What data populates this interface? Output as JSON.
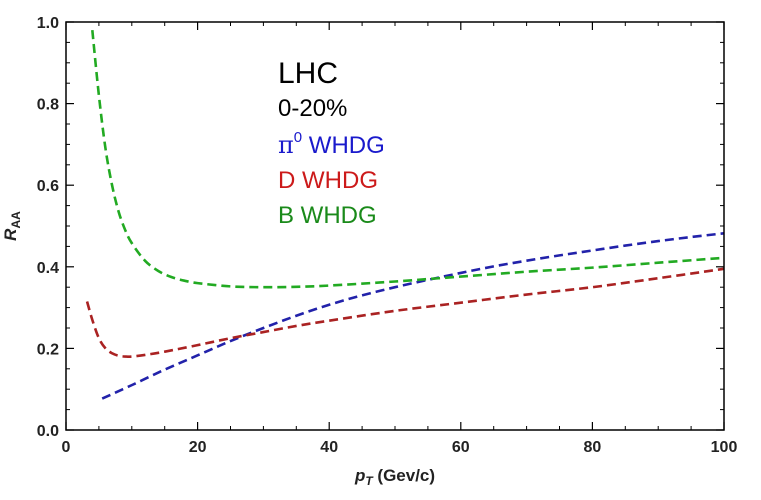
{
  "chart_data": {
    "type": "line",
    "title": "",
    "xlabel_main": "p",
    "xlabel_sub": "T",
    "xlabel_rest": " (Gev/c)",
    "ylabel_main": "R",
    "ylabel_sub": "AA",
    "xlim": [
      0,
      100
    ],
    "ylim": [
      0,
      1
    ],
    "x_ticks": [
      0,
      20,
      40,
      60,
      80,
      100
    ],
    "x_tick_labels": [
      "0",
      "20",
      "40",
      "60",
      "80",
      "100"
    ],
    "y_ticks": [
      0,
      0.2,
      0.4,
      0.6,
      0.8,
      1.0
    ],
    "y_tick_labels": [
      "0.0",
      "0.2",
      "0.4",
      "0.6",
      "0.8",
      "1.0"
    ],
    "grid": false,
    "annotations": {
      "collider": "LHC",
      "centrality": "0-20%",
      "labels": [
        {
          "symbol": "π",
          "sup": "0",
          "text": " WHDG",
          "color": "#1a1acc"
        },
        {
          "symbol": "",
          "sup": "",
          "text": "D WHDG",
          "color": "#cc1a1a"
        },
        {
          "symbol": "",
          "sup": "",
          "text": "B WHDG",
          "color": "#1a8a1a"
        }
      ]
    },
    "series": [
      {
        "color": "#2222aa",
        "x": [
          5.5,
          10,
          15,
          20,
          25,
          30,
          35,
          40,
          45,
          50,
          55,
          60,
          65,
          70,
          75,
          80,
          85,
          90,
          95,
          100
        ],
        "y": [
          0.077,
          0.11,
          0.148,
          0.183,
          0.218,
          0.25,
          0.28,
          0.307,
          0.33,
          0.35,
          0.368,
          0.385,
          0.401,
          0.415,
          0.428,
          0.44,
          0.452,
          0.463,
          0.473,
          0.482
        ]
      },
      {
        "color": "#aa2222",
        "x": [
          3.2,
          4,
          5,
          6,
          7,
          8,
          9,
          10,
          12,
          15,
          20,
          25,
          30,
          35,
          40,
          50,
          60,
          70,
          80,
          90,
          100
        ],
        "y": [
          0.315,
          0.27,
          0.225,
          0.2,
          0.188,
          0.182,
          0.18,
          0.18,
          0.184,
          0.192,
          0.208,
          0.225,
          0.24,
          0.255,
          0.268,
          0.292,
          0.312,
          0.332,
          0.35,
          0.372,
          0.395
        ]
      },
      {
        "color": "#22aa22",
        "x": [
          4,
          5,
          6,
          7,
          8,
          9,
          10,
          12,
          14,
          16,
          18,
          20,
          25,
          30,
          35,
          40,
          50,
          60,
          70,
          80,
          90,
          100
        ],
        "y": [
          0.98,
          0.82,
          0.69,
          0.6,
          0.535,
          0.49,
          0.458,
          0.415,
          0.39,
          0.375,
          0.366,
          0.36,
          0.352,
          0.35,
          0.351,
          0.354,
          0.364,
          0.376,
          0.388,
          0.398,
          0.41,
          0.422
        ]
      }
    ]
  }
}
